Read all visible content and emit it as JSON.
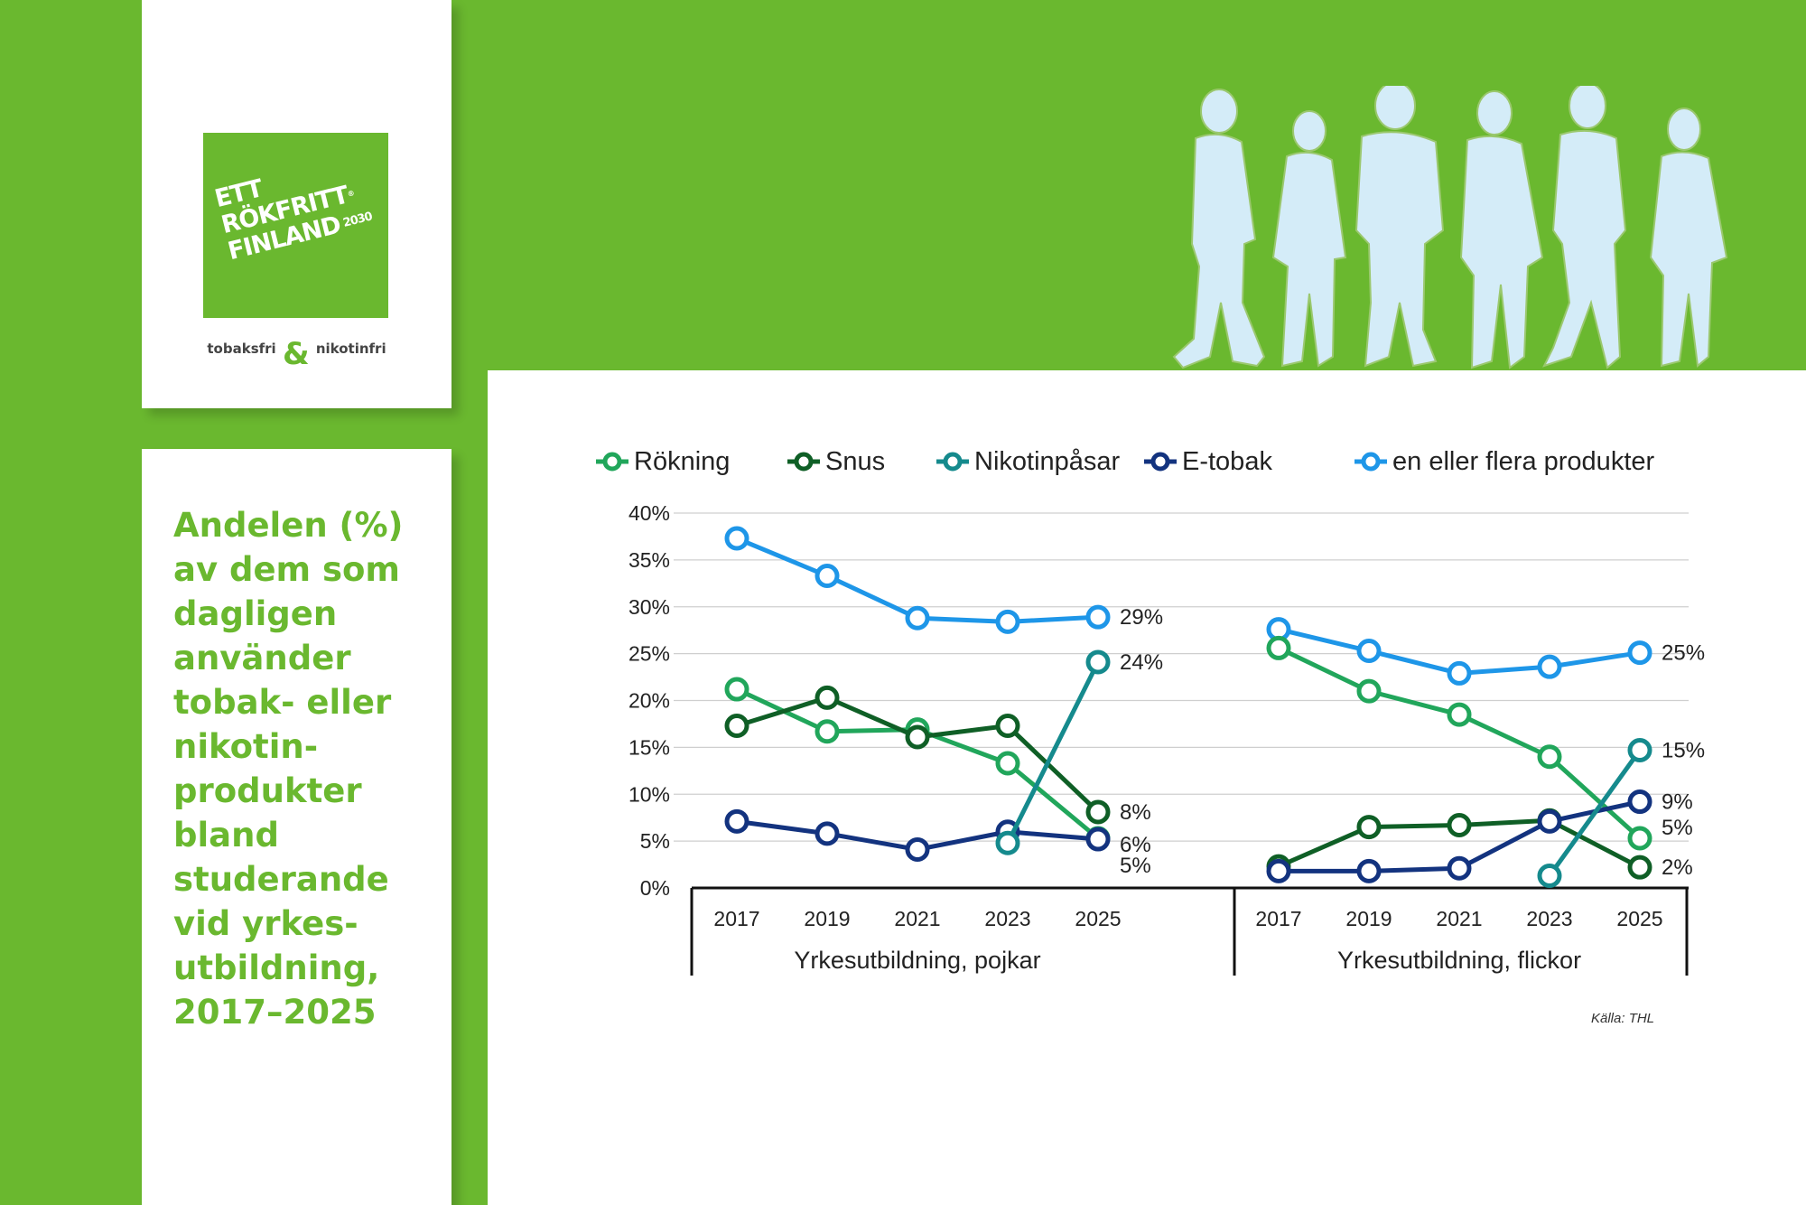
{
  "logo": {
    "line1": "ETT RÖKFRITT",
    "reg_mark": "®",
    "line2": "FINLAND",
    "year": "2030",
    "tagline_left": "tobaksfri",
    "tagline_amp": "&",
    "tagline_right": "nikotinfri"
  },
  "title": "Andelen (%) av dem som dagligen använder tobak- eller nikotin- produkter bland studerande vid yrkes- utbildning, 2017–2025",
  "source": "Källa: THL",
  "colors": {
    "background": "#6ab82f",
    "rokning": "#21a65b",
    "snus": "#0f5f26",
    "nikotinpasar": "#158a8d",
    "etobak": "#13337f",
    "flera": "#1e96e8",
    "silhouette": "#d4ecf8"
  },
  "chart_data": {
    "type": "line",
    "categories": [
      "2017",
      "2019",
      "2021",
      "2023",
      "2025"
    ],
    "panels": [
      {
        "label": "Yrkesutbildning, pojkar",
        "series": [
          {
            "key": "rokning",
            "name": "Rökning",
            "values": [
              21.2,
              16.7,
              16.9,
              13.3,
              5.3
            ]
          },
          {
            "key": "snus",
            "name": "Snus",
            "values": [
              17.3,
              20.3,
              16.1,
              17.3,
              8.1
            ]
          },
          {
            "key": "nikotinpasar",
            "name": "Nikotinpåsar",
            "values": [
              null,
              null,
              null,
              4.8,
              24.1
            ]
          },
          {
            "key": "etobak",
            "name": "E-tobak",
            "values": [
              7.1,
              5.8,
              4.1,
              6.0,
              5.2
            ]
          },
          {
            "key": "flera",
            "name": "en eller flera produkter",
            "values": [
              37.3,
              33.3,
              28.8,
              28.4,
              28.9
            ]
          }
        ],
        "end_labels": [
          "29%",
          "24%",
          "8%",
          "6%",
          "5%"
        ]
      },
      {
        "label": "Yrkesutbildning, flickor",
        "series": [
          {
            "key": "rokning",
            "name": "Rökning",
            "values": [
              25.6,
              21.0,
              18.5,
              14.0,
              5.3
            ]
          },
          {
            "key": "snus",
            "name": "Snus",
            "values": [
              2.3,
              6.5,
              6.7,
              7.2,
              2.2
            ]
          },
          {
            "key": "nikotinpasar",
            "name": "Nikotinpåsar",
            "values": [
              null,
              null,
              null,
              1.3,
              14.7
            ]
          },
          {
            "key": "etobak",
            "name": "E-tobak",
            "values": [
              1.8,
              1.8,
              2.1,
              7.1,
              9.2
            ]
          },
          {
            "key": "flera",
            "name": "en eller flera produkter",
            "values": [
              27.6,
              25.3,
              22.9,
              23.6,
              25.1
            ]
          }
        ],
        "end_labels": [
          "25%",
          "15%",
          "9%",
          "5%",
          "2%"
        ]
      }
    ],
    "legend": [
      "Rökning",
      "Snus",
      "Nikotinpåsar",
      "E-tobak",
      "en eller flera produkter"
    ],
    "yticks": [
      "0%",
      "5%",
      "10%",
      "15%",
      "20%",
      "25%",
      "30%",
      "35%",
      "40%"
    ],
    "ylim": [
      0,
      40
    ],
    "grid": true,
    "legend_position": "top"
  }
}
